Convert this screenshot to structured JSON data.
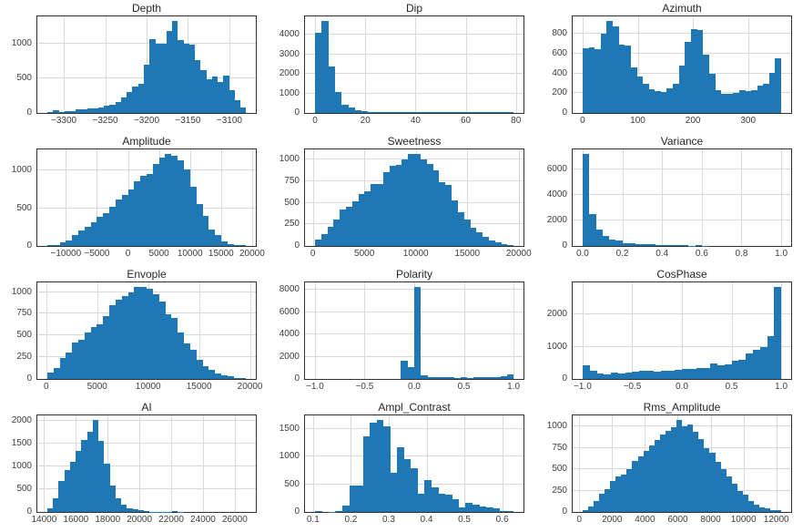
{
  "figure": {
    "background_color": "#ffffff",
    "bar_color": "#1f77b4",
    "grid_color": "#d9d9d9",
    "spine_color": "#303030",
    "title_color": "#262626",
    "tick_color": "#3d3d3d"
  },
  "chart_data": [
    {
      "type": "bar",
      "title": "Depth",
      "bins": [
        -3320,
        -3080
      ],
      "xlim": [
        -3332,
        -3068
      ],
      "ylim": [
        0,
        1390
      ],
      "xticks": [
        -3300,
        -3250,
        -3200,
        -3150,
        -3100
      ],
      "xtick_labels": [
        "−3300",
        "−3250",
        "−3200",
        "−3150",
        "−3100"
      ],
      "yticks": [
        0,
        500,
        1000
      ],
      "ytick_labels": [
        "0",
        "500",
        "1000"
      ],
      "values": [
        15,
        45,
        12,
        25,
        30,
        55,
        50,
        60,
        65,
        75,
        100,
        115,
        155,
        225,
        300,
        385,
        420,
        700,
        1060,
        1000,
        1000,
        1180,
        1320,
        1050,
        1000,
        980,
        760,
        620,
        480,
        530,
        450,
        540,
        330,
        180,
        75
      ]
    },
    {
      "type": "bar",
      "title": "Dip",
      "bins": [
        0,
        79
      ],
      "xlim": [
        -4,
        83
      ],
      "ylim": [
        0,
        4940
      ],
      "xticks": [
        0,
        20,
        40,
        60,
        80
      ],
      "xtick_labels": [
        "0",
        "20",
        "40",
        "60",
        "80"
      ],
      "yticks": [
        0,
        1000,
        2000,
        3000,
        4000
      ],
      "ytick_labels": [
        "0",
        "1000",
        "2000",
        "3000",
        "4000"
      ],
      "values": [
        4100,
        4700,
        2400,
        1080,
        420,
        280,
        150,
        90,
        70,
        60,
        55,
        50,
        50,
        45,
        45,
        40,
        40,
        40,
        40,
        35,
        35,
        35,
        35,
        30,
        30,
        30,
        30,
        30,
        35,
        60
      ]
    },
    {
      "type": "bar",
      "title": "Azimuth",
      "bins": [
        0,
        360
      ],
      "xlim": [
        -18,
        378
      ],
      "ylim": [
        0,
        980
      ],
      "xticks": [
        0,
        100,
        200,
        300
      ],
      "xtick_labels": [
        "0",
        "100",
        "200",
        "300"
      ],
      "yticks": [
        0,
        200,
        400,
        600,
        800
      ],
      "ytick_labels": [
        "0",
        "200",
        "400",
        "600",
        "800"
      ],
      "values": [
        655,
        665,
        650,
        800,
        930,
        875,
        690,
        685,
        465,
        370,
        295,
        245,
        220,
        215,
        250,
        300,
        480,
        725,
        855,
        840,
        590,
        400,
        235,
        195,
        190,
        200,
        235,
        225,
        230,
        280,
        300,
        405,
        555
      ]
    },
    {
      "type": "bar",
      "title": "Amplitude",
      "bins": [
        -13000,
        19000
      ],
      "xlim": [
        -14600,
        20600
      ],
      "ylim": [
        0,
        1280
      ],
      "xticks": [
        -10000,
        -5000,
        0,
        5000,
        10000,
        15000,
        20000
      ],
      "xtick_labels": [
        "−10000",
        "−5000",
        "0",
        "5000",
        "10000",
        "15000",
        "20000"
      ],
      "yticks": [
        0,
        500,
        1000
      ],
      "ytick_labels": [
        "0",
        "500",
        "1000"
      ],
      "values": [
        10,
        15,
        45,
        75,
        140,
        210,
        250,
        310,
        385,
        440,
        520,
        620,
        680,
        750,
        860,
        930,
        950,
        1090,
        1175,
        1220,
        1200,
        1140,
        1020,
        780,
        550,
        395,
        215,
        140,
        55,
        25,
        10,
        10
      ]
    },
    {
      "type": "bar",
      "title": "Sweetness",
      "bins": [
        200,
        19500
      ],
      "xlim": [
        -765,
        20465
      ],
      "ylim": [
        0,
        1120
      ],
      "xticks": [
        0,
        5000,
        10000,
        15000,
        20000
      ],
      "xtick_labels": [
        "0",
        "5000",
        "10000",
        "15000",
        "20000"
      ],
      "yticks": [
        0,
        250,
        500,
        750,
        1000
      ],
      "ytick_labels": [
        "0",
        "250",
        "500",
        "750",
        "1000"
      ],
      "values": [
        75,
        140,
        225,
        310,
        420,
        455,
        520,
        600,
        630,
        715,
        720,
        860,
        935,
        945,
        1000,
        1065,
        1070,
        1000,
        950,
        875,
        740,
        705,
        530,
        395,
        305,
        215,
        155,
        110,
        60,
        40,
        20,
        15
      ]
    },
    {
      "type": "bar",
      "title": "Variance",
      "bins": [
        0,
        1.0
      ],
      "xlim": [
        -0.05,
        1.05
      ],
      "ylim": [
        0,
        7560
      ],
      "xticks": [
        0.0,
        0.2,
        0.4,
        0.6,
        0.8,
        1.0
      ],
      "xtick_labels": [
        "0.0",
        "0.2",
        "0.4",
        "0.6",
        "0.8",
        "1.0"
      ],
      "yticks": [
        0,
        2000,
        4000,
        6000
      ],
      "ytick_labels": [
        "0",
        "2000",
        "4000",
        "6000"
      ],
      "values": [
        7200,
        2500,
        1300,
        750,
        520,
        420,
        250,
        180,
        150,
        120,
        150,
        80,
        70,
        60,
        50,
        40,
        30,
        100,
        10,
        5,
        4,
        3,
        2,
        2,
        1,
        1,
        1,
        1,
        1,
        1
      ]
    },
    {
      "type": "bar",
      "title": "Envople",
      "bins": [
        100,
        19600
      ],
      "xlim": [
        -875,
        20575
      ],
      "ylim": [
        0,
        1110
      ],
      "xticks": [
        0,
        5000,
        10000,
        15000,
        20000
      ],
      "xtick_labels": [
        "0",
        "5000",
        "10000",
        "15000",
        "20000"
      ],
      "yticks": [
        0,
        250,
        500,
        750,
        1000
      ],
      "ytick_labels": [
        "0",
        "250",
        "500",
        "750",
        "1000"
      ],
      "values": [
        70,
        130,
        240,
        300,
        420,
        450,
        535,
        600,
        630,
        720,
        850,
        910,
        950,
        1000,
        1055,
        1060,
        1040,
        975,
        890,
        740,
        700,
        530,
        405,
        340,
        220,
        150,
        110,
        65,
        40,
        30,
        15,
        10
      ]
    },
    {
      "type": "bar",
      "title": "Polarity",
      "bins": [
        -1.0,
        1.0
      ],
      "xlim": [
        -1.1,
        1.1
      ],
      "ylim": [
        0,
        8660
      ],
      "xticks": [
        -1.0,
        -0.5,
        0.0,
        0.5,
        1.0
      ],
      "xtick_labels": [
        "−1.0",
        "−0.5",
        "0.0",
        "0.5",
        "1.0"
      ],
      "yticks": [
        0,
        2000,
        4000,
        6000,
        8000
      ],
      "ytick_labels": [
        "0",
        "2000",
        "4000",
        "6000",
        "8000"
      ],
      "values": [
        0,
        0,
        0,
        0,
        0,
        0,
        0,
        0,
        0,
        0,
        0,
        0,
        0,
        1600,
        1100,
        8250,
        320,
        150,
        140,
        130,
        160,
        120,
        150,
        110,
        130,
        150,
        130,
        150,
        230,
        380
      ]
    },
    {
      "type": "bar",
      "title": "CosPhase",
      "bins": [
        -1.0,
        1.0
      ],
      "xlim": [
        -1.1,
        1.1
      ],
      "ylim": [
        0,
        2990
      ],
      "xticks": [
        -1.0,
        -0.5,
        0.0,
        0.5,
        1.0
      ],
      "xtick_labels": [
        "−1.0",
        "−0.5",
        "0.0",
        "0.5",
        "1.0"
      ],
      "yticks": [
        0,
        1000,
        2000
      ],
      "ytick_labels": [
        "0",
        "1000",
        "2000"
      ],
      "values": [
        410,
        250,
        175,
        145,
        185,
        180,
        205,
        220,
        250,
        260,
        240,
        250,
        265,
        290,
        300,
        310,
        330,
        340,
        490,
        420,
        440,
        560,
        600,
        785,
        890,
        1000,
        1330,
        2850
      ]
    },
    {
      "type": "bar",
      "title": "AI",
      "bins": [
        14200,
        26700
      ],
      "xlim": [
        13575,
        27325
      ],
      "ylim": [
        0,
        2120
      ],
      "xticks": [
        14000,
        16000,
        18000,
        20000,
        22000,
        24000,
        26000
      ],
      "xtick_labels": [
        "14000",
        "16000",
        "18000",
        "20000",
        "22000",
        "24000",
        "26000"
      ],
      "yticks": [
        0,
        500,
        1000,
        1500,
        2000
      ],
      "ytick_labels": [
        "0",
        "500",
        "1000",
        "1500",
        "2000"
      ],
      "values": [
        80,
        300,
        690,
        920,
        1100,
        1350,
        1580,
        1770,
        2020,
        1570,
        1060,
        590,
        310,
        160,
        90,
        60,
        40,
        15,
        10,
        5,
        3,
        2,
        30,
        2,
        1,
        1,
        1,
        0,
        0,
        0,
        0,
        0,
        0,
        0,
        1
      ]
    },
    {
      "type": "bar",
      "title": "Ampl_Contrast",
      "bins": [
        0.105,
        0.63
      ],
      "xlim": [
        0.0787,
        0.6563
      ],
      "ylim": [
        0,
        1740
      ],
      "xticks": [
        0.1,
        0.2,
        0.3,
        0.4,
        0.5,
        0.6
      ],
      "xtick_labels": [
        "0.1",
        "0.2",
        "0.3",
        "0.4",
        "0.5",
        "0.6"
      ],
      "yticks": [
        0,
        500,
        1000,
        1500
      ],
      "ytick_labels": [
        "0",
        "500",
        "1000",
        "1500"
      ],
      "values": [
        10,
        0,
        5,
        20,
        120,
        470,
        480,
        1360,
        1610,
        1660,
        1540,
        710,
        1170,
        960,
        780,
        330,
        580,
        450,
        330,
        310,
        230,
        80,
        160,
        130,
        100,
        80,
        70,
        15,
        10
      ]
    },
    {
      "type": "bar",
      "title": "Rms_Amplitude",
      "bins": [
        200,
        12300
      ],
      "xlim": [
        -405,
        12905
      ],
      "ylim": [
        0,
        1130
      ],
      "xticks": [
        0,
        2000,
        4000,
        6000,
        8000,
        10000,
        12000
      ],
      "xtick_labels": [
        "0",
        "2000",
        "4000",
        "6000",
        "8000",
        "10000",
        "12000"
      ],
      "yticks": [
        0,
        250,
        500,
        750,
        1000
      ],
      "ytick_labels": [
        "0",
        "250",
        "500",
        "750",
        "1000"
      ],
      "values": [
        25,
        60,
        130,
        210,
        270,
        360,
        415,
        440,
        505,
        595,
        650,
        715,
        775,
        840,
        905,
        950,
        990,
        1075,
        1000,
        1020,
        935,
        850,
        745,
        690,
        585,
        500,
        415,
        330,
        250,
        200,
        130,
        85,
        55,
        40,
        25,
        20
      ]
    }
  ]
}
